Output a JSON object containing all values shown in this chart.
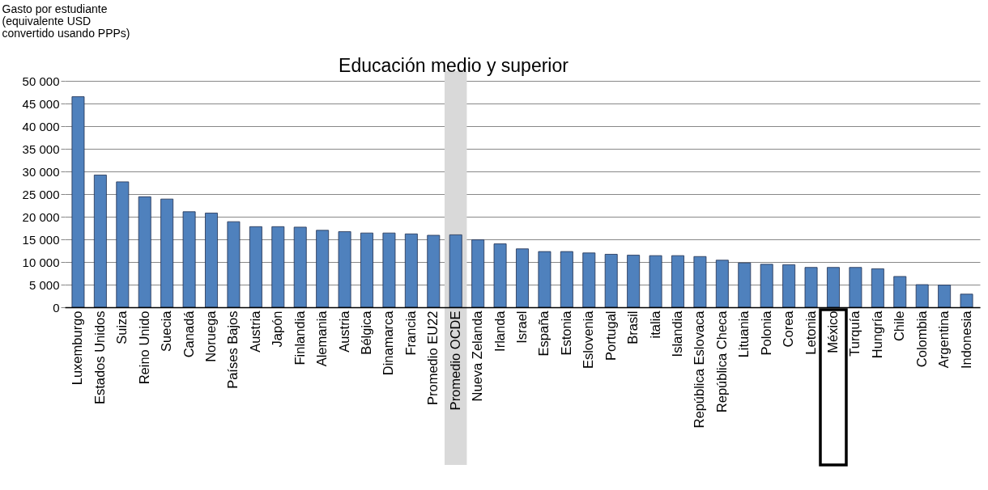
{
  "chart_data": {
    "type": "bar",
    "title": "Educación medio y superior",
    "ylabel": "Gasto por estudiante\n(equivalente USD\nconvertido usando PPPs)",
    "categories": [
      "Luxemburgo",
      "Estados Unidos",
      "Suiza",
      "Reino Unido",
      "Suecia",
      "Canadá",
      "Noruega",
      "Países Bajos",
      "Austria",
      "Japón",
      "Finlandia",
      "Alemania",
      "Austria",
      "Bélgica",
      "Dinamarca",
      "Francia",
      "Promedio EU22",
      "Promedio OCDE",
      "Nueva Zelanda",
      "Irlanda",
      "Israel",
      "España",
      "Estonia",
      "Eslovenia",
      "Portugal",
      "Brasil",
      "italia",
      "Islandia",
      "República Eslovaca",
      "República Checa",
      "Lituania",
      "Polonia",
      "Corea",
      "Letonia",
      "México",
      "Turquía",
      "Hungría",
      "Chile",
      "Colombia",
      "Argentina",
      "Indonesia"
    ],
    "values": [
      46500,
      29200,
      27700,
      24400,
      23900,
      21100,
      20800,
      18900,
      17800,
      17800,
      17700,
      17000,
      16700,
      16400,
      16400,
      16200,
      15900,
      16000,
      14900,
      14000,
      12900,
      12300,
      12300,
      12000,
      11700,
      11500,
      11400,
      11400,
      11200,
      10400,
      9800,
      9500,
      9400,
      8800,
      8800,
      8800,
      8500,
      6800,
      5000,
      4900,
      2900
    ],
    "color": "#4f81bd",
    "ylim": [
      0,
      50000
    ],
    "yticks": [
      0,
      {
        "value": 5000,
        "label": "5 000"
      },
      {
        "value": 10000,
        "label": "10 000"
      },
      {
        "value": 15000,
        "label": "15 000"
      },
      {
        "value": 20000,
        "label": "20 000"
      },
      {
        "value": 25000,
        "label": "25 000"
      },
      {
        "value": 30000,
        "label": "30 000"
      },
      {
        "value": 35000,
        "label": "35 000"
      },
      {
        "value": 40000,
        "label": "40 000"
      },
      {
        "value": 45000,
        "label": "45 000"
      },
      {
        "value": 50000,
        "label": "50 000"
      }
    ],
    "bands": [
      {
        "axis": "x",
        "from": "Promedio OCDE",
        "to": "Promedio OCDE",
        "color": "#d9d9d9"
      }
    ],
    "grid": "y"
  }
}
